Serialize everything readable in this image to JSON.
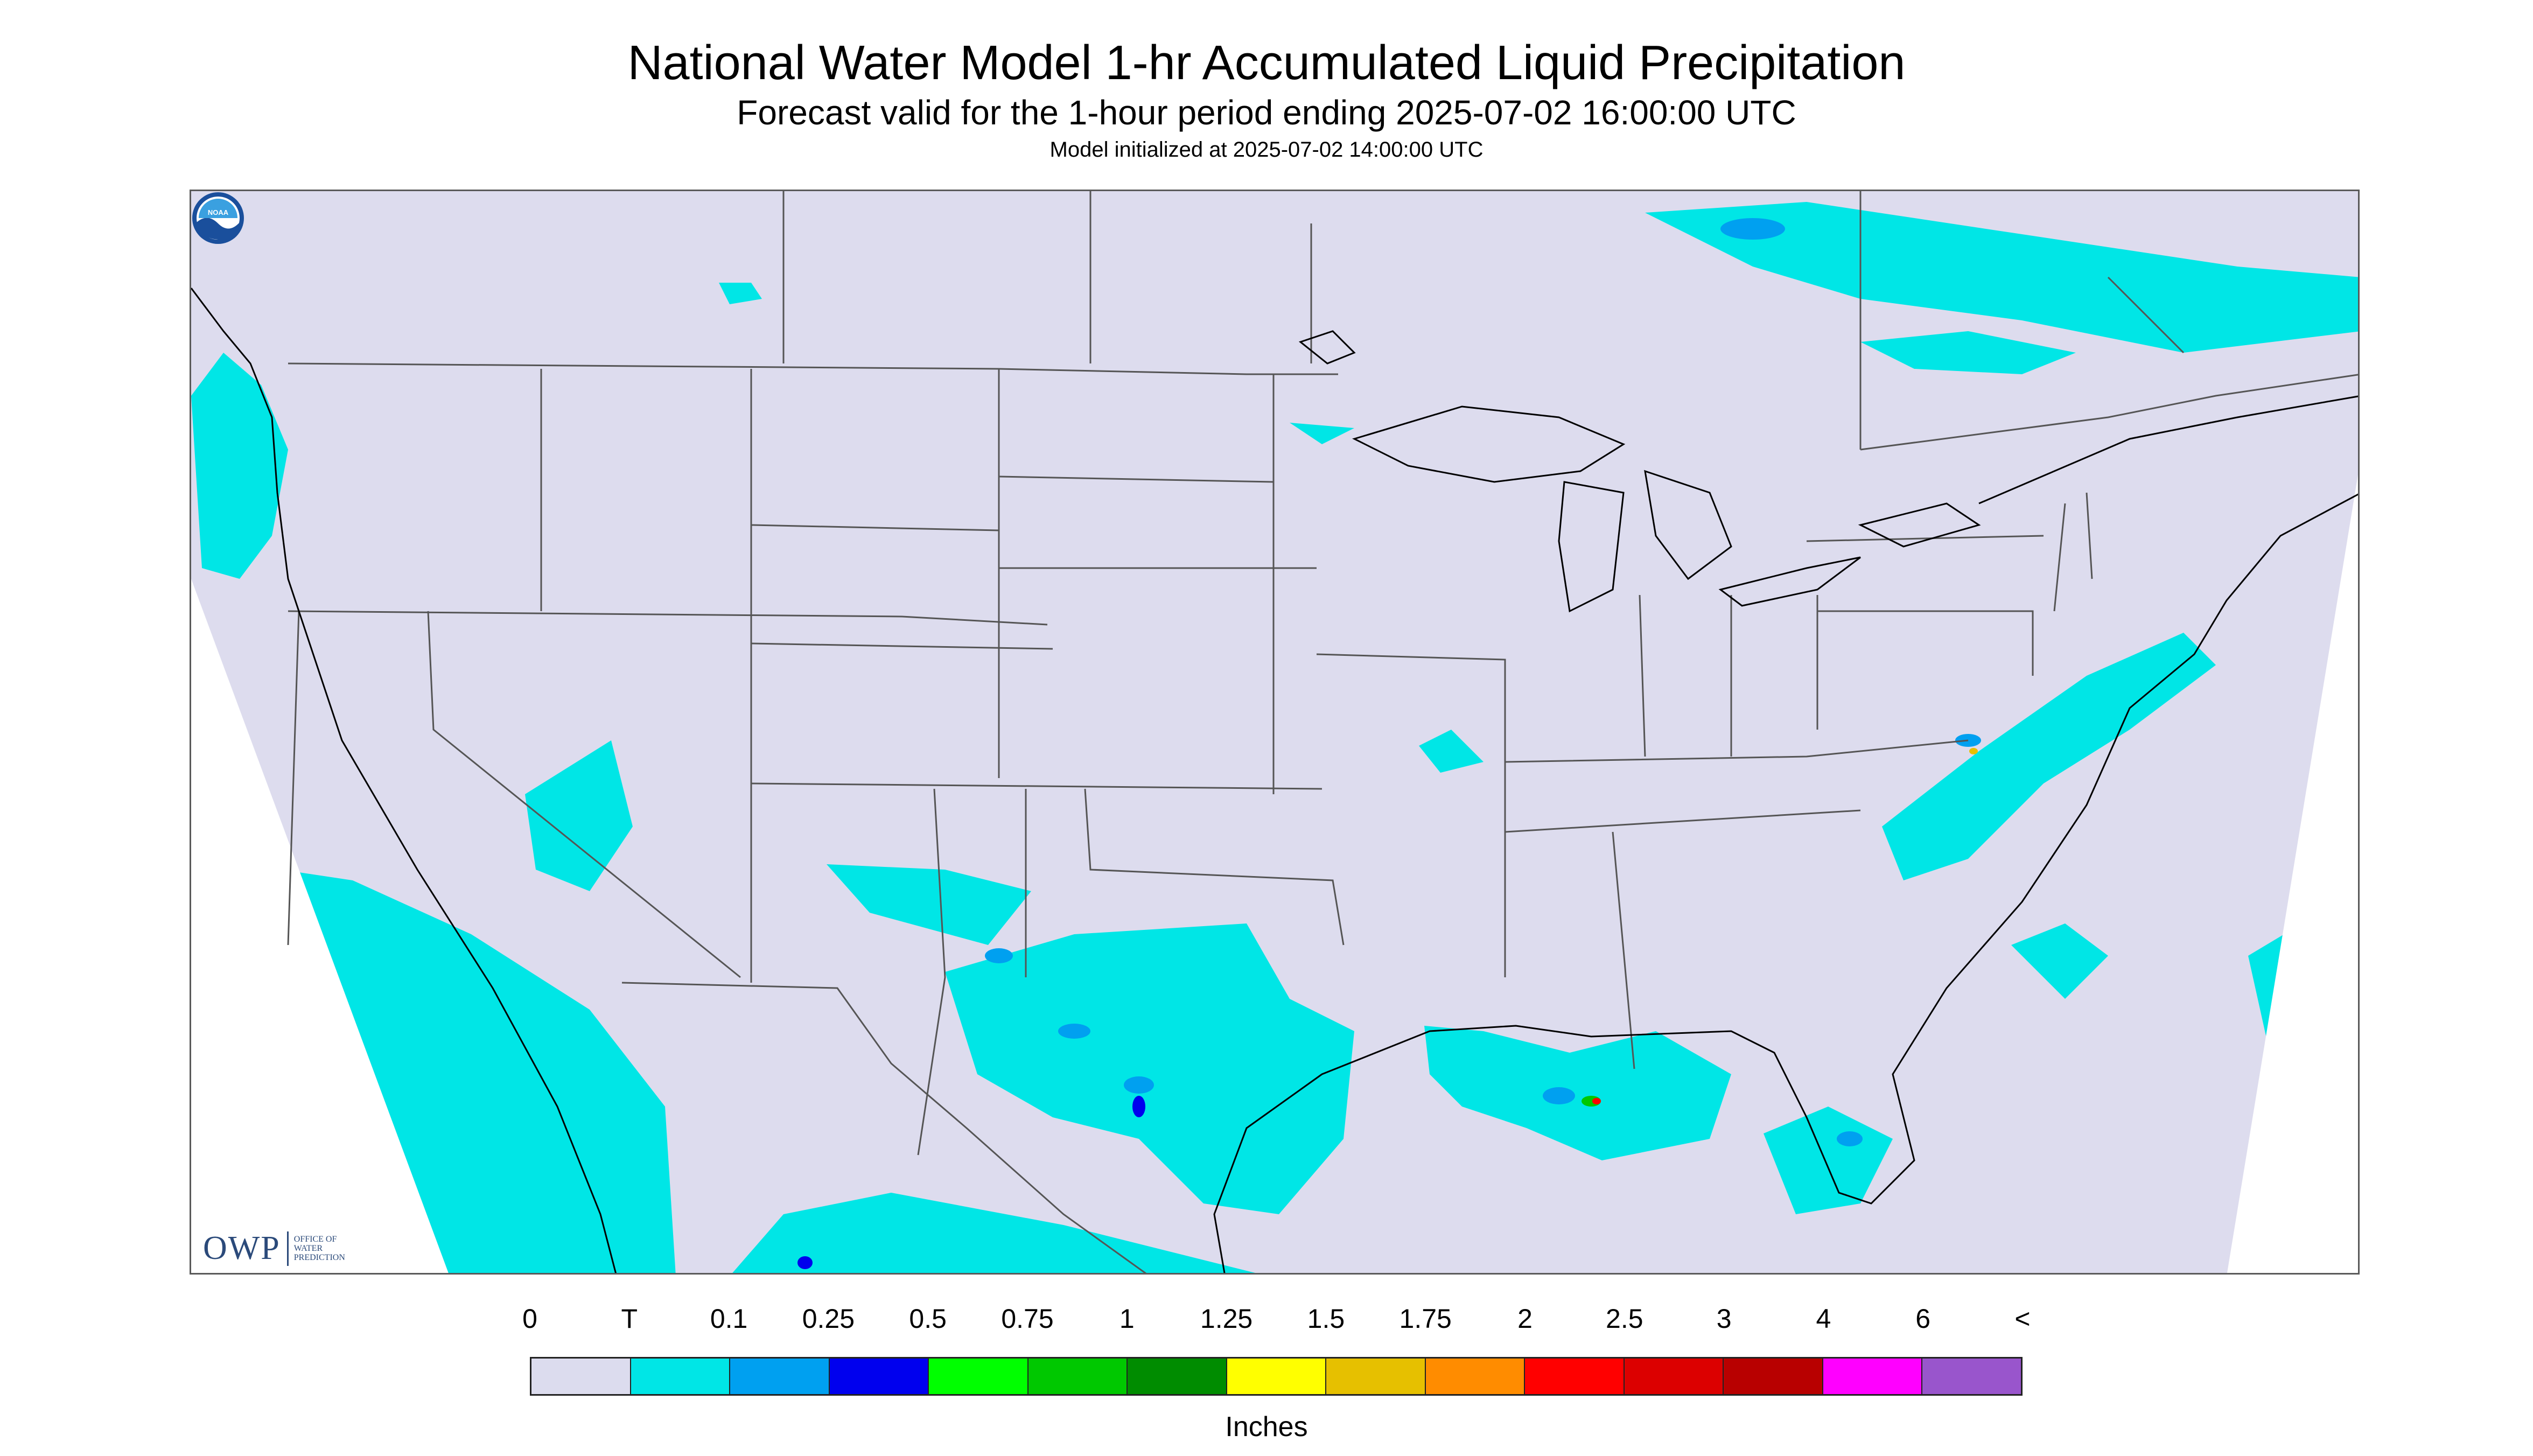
{
  "header": {
    "title": "National Water Model 1-hr Accumulated Liquid Precipitation",
    "subtitle": "Forecast valid for the 1-hour period ending 2025-07-02 16:00:00 UTC",
    "init_line": "Model initialized at 2025-07-02 14:00:00 UTC"
  },
  "logos": {
    "owp_mark": "OWP",
    "owp_text": [
      "OFFICE OF",
      "WATER",
      "PREDICTION"
    ],
    "noaa_text": "NOAA"
  },
  "colors": {
    "map_background": "#dddcee",
    "outside_domain": "#ffffff",
    "boundary_lines": "#555555",
    "coastline": "#000000"
  },
  "legend": {
    "labels": [
      "0",
      "T",
      "0.1",
      "0.25",
      "0.5",
      "0.75",
      "1",
      "1.25",
      "1.5",
      "1.75",
      "2",
      "2.5",
      "3",
      "4",
      "6",
      "<"
    ],
    "colors": [
      "#dcdcee",
      "#00e6e6",
      "#00a0f0",
      "#0000ee",
      "#00ff00",
      "#00c800",
      "#008c00",
      "#ffff00",
      "#e6c000",
      "#ff8c00",
      "#ff0000",
      "#dc0000",
      "#b80000",
      "#ff00ff",
      "#9955cc"
    ],
    "units": "Inches"
  }
}
